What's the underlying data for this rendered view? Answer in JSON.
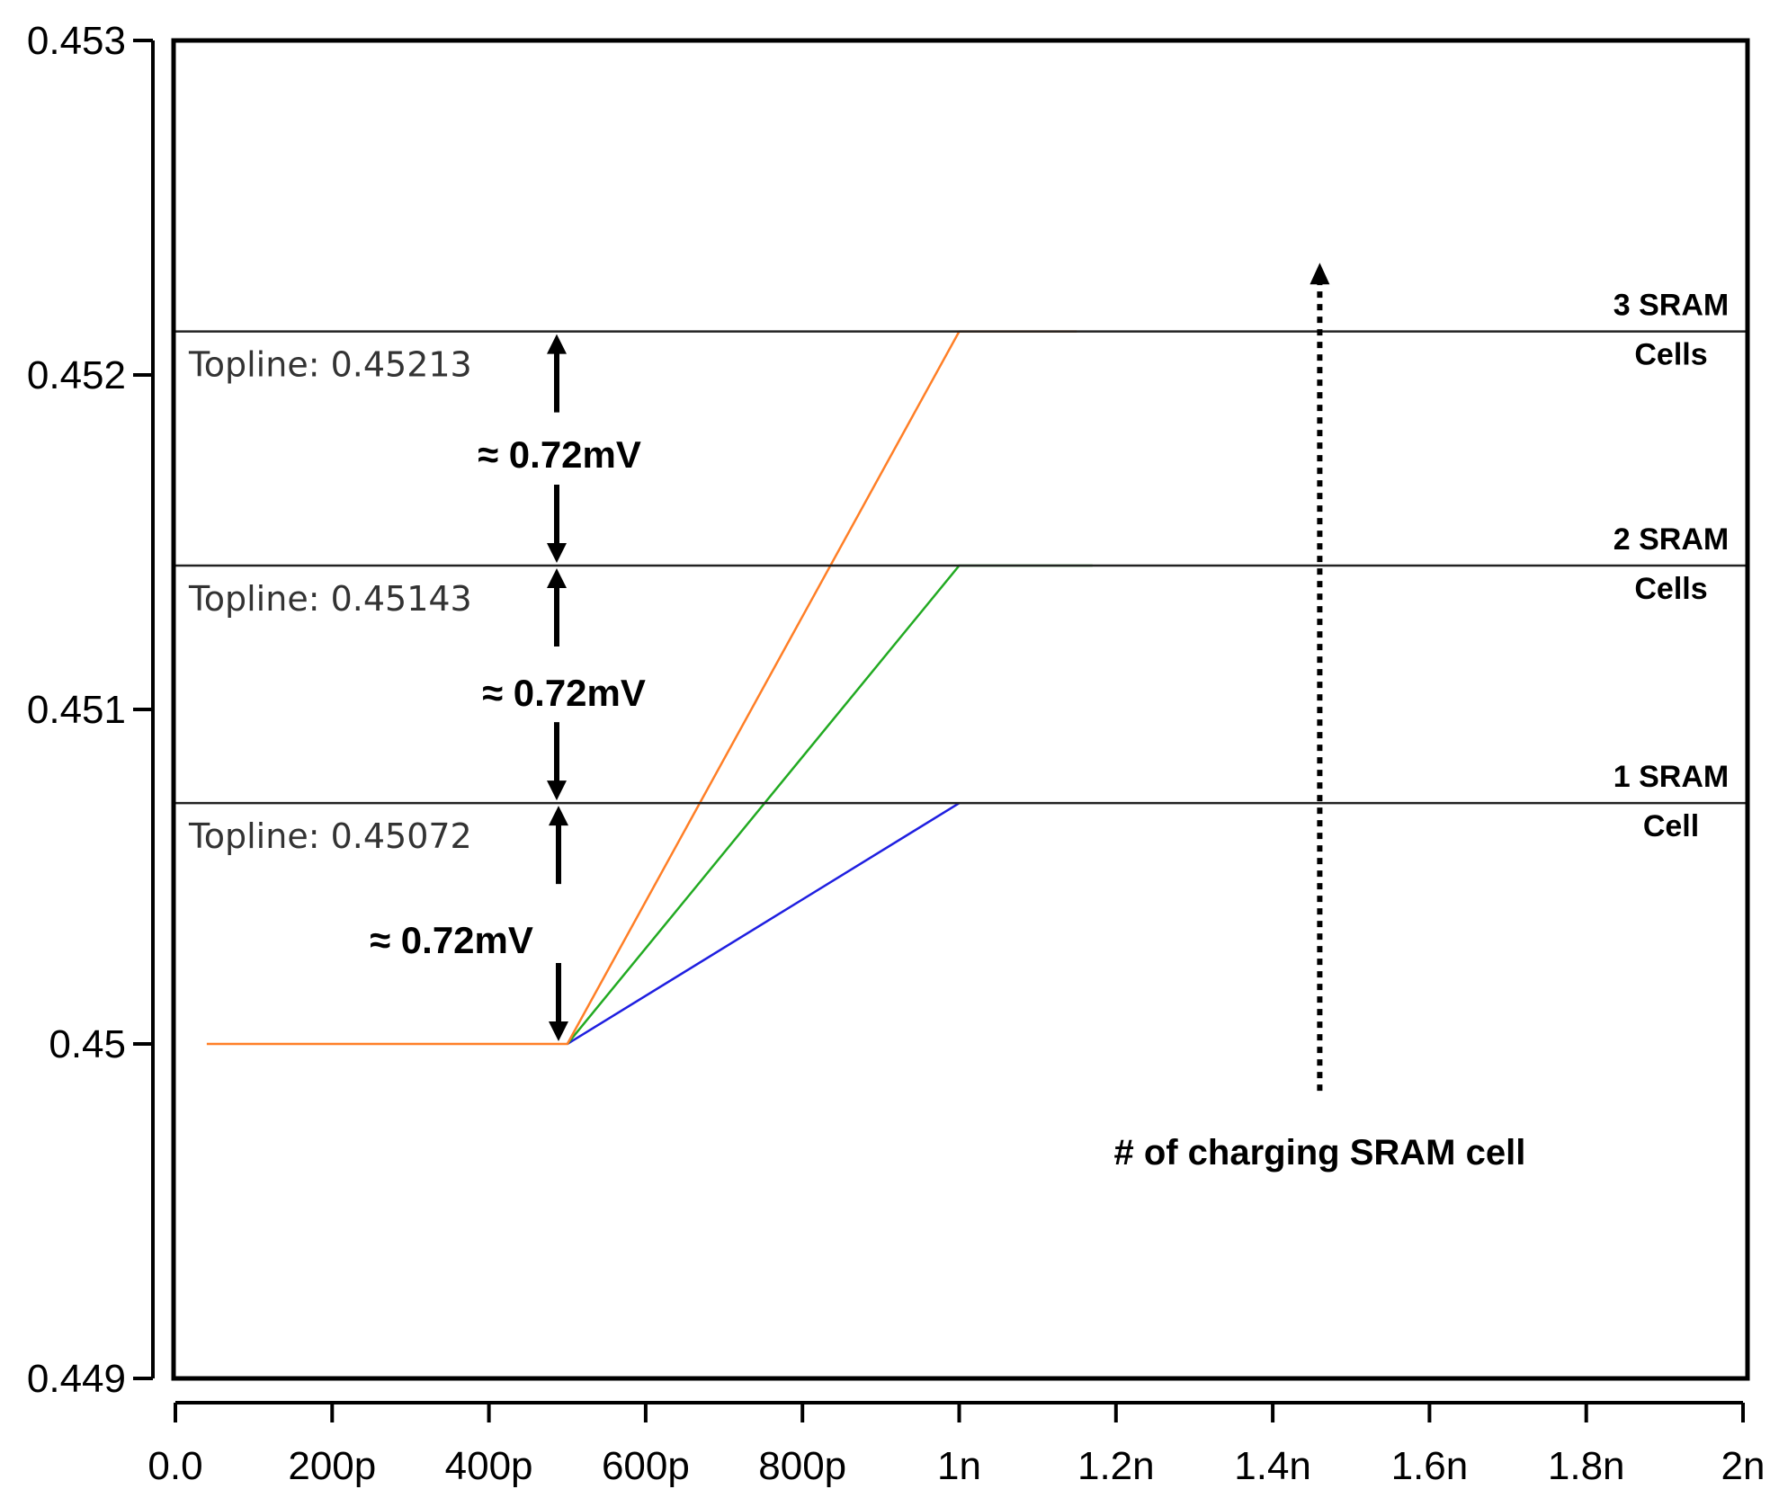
{
  "chart_data": {
    "type": "line",
    "title": "",
    "xlabel": "",
    "ylabel": "",
    "xlim": [
      0,
      2e-09
    ],
    "ylim": [
      0.449,
      0.453
    ],
    "grid": false,
    "x_ticks": [
      {
        "value": 0,
        "label": "0.0"
      },
      {
        "value": 2e-10,
        "label": "200p"
      },
      {
        "value": 4e-10,
        "label": "400p"
      },
      {
        "value": 6e-10,
        "label": "600p"
      },
      {
        "value": 8e-10,
        "label": "800p"
      },
      {
        "value": 1e-09,
        "label": "1n"
      },
      {
        "value": 1.2e-09,
        "label": "1.2n"
      },
      {
        "value": 1.4e-09,
        "label": "1.4n"
      },
      {
        "value": 1.6e-09,
        "label": "1.6n"
      },
      {
        "value": 1.8e-09,
        "label": "1.8n"
      },
      {
        "value": 2e-09,
        "label": "2n"
      }
    ],
    "y_ticks": [
      {
        "value": 0.449,
        "label": "0.449"
      },
      {
        "value": 0.45,
        "label": "0.45"
      },
      {
        "value": 0.451,
        "label": "0.451"
      },
      {
        "value": 0.452,
        "label": "0.452"
      },
      {
        "value": 0.453,
        "label": "0.453"
      }
    ],
    "series": [
      {
        "color": "#1f1fe0",
        "x": [
          5e-10,
          1e-09
        ],
        "y": [
          0.45,
          0.45072
        ]
      },
      {
        "color": "#22aa22",
        "x": [
          5e-10,
          1e-09,
          1.17e-09
        ],
        "y": [
          0.45,
          0.45143,
          0.45143
        ]
      },
      {
        "color": "#ff7f27",
        "x": [
          4e-11,
          5e-10,
          1e-09,
          1.15e-09
        ],
        "y": [
          0.45,
          0.45,
          0.45213,
          0.45213
        ]
      }
    ],
    "toplines": [
      {
        "value": 0.45213,
        "label": "Topline: 0.45213",
        "cells_line1": "3 SRAM",
        "cells_line2": "Cells"
      },
      {
        "value": 0.45143,
        "label": "Topline: 0.45143",
        "cells_line1": "2 SRAM",
        "cells_line2": "Cells"
      },
      {
        "value": 0.45072,
        "label": "Topline: 0.45072",
        "cells_line1": "1 SRAM",
        "cells_line2": "Cell"
      }
    ],
    "annotations": {
      "delta_label": "≈ 0.72mV",
      "arrow_caption": "# of charging SRAM cell",
      "arrow_x": 1.46e-09,
      "arrow_y_range": [
        0.44986,
        0.45233
      ]
    }
  }
}
